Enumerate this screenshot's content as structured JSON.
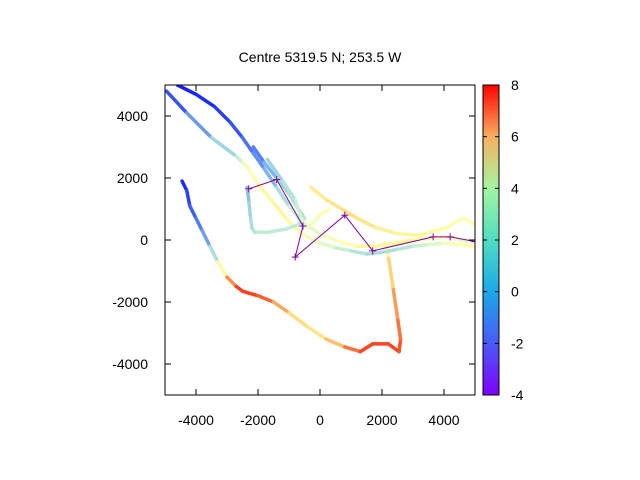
{
  "chart_data": {
    "type": "scatter",
    "title": "Centre 5319.5 N; 253.5  W",
    "xlabel": "",
    "ylabel": "",
    "xlim": [
      -5000,
      5000
    ],
    "ylim": [
      -5000,
      5000
    ],
    "xticks": [
      -4000,
      -2000,
      0,
      2000,
      4000
    ],
    "yticks": [
      -4000,
      -2000,
      0,
      2000,
      4000
    ],
    "xtick_labels": [
      "-4000",
      "-2000",
      "0",
      "2000",
      "4000"
    ],
    "ytick_labels": [
      "-4000",
      "-2000",
      "0",
      "2000",
      "4000"
    ],
    "grid": false,
    "colorbar": {
      "range": [
        -4,
        8
      ],
      "ticks": [
        -4,
        -2,
        0,
        2,
        4,
        6,
        8
      ],
      "tick_labels": [
        "-4",
        "-2",
        "0",
        "2",
        "4",
        "6",
        "8"
      ],
      "palette": "rainbow"
    },
    "tracks": [
      {
        "points": [
          [
            -4450,
            1900,
            -3.5
          ],
          [
            -4300,
            1600,
            -3.2
          ],
          [
            -4200,
            1100,
            -2.8
          ],
          [
            -4000,
            700,
            -2.3
          ],
          [
            -3800,
            300,
            -1.8
          ],
          [
            -3550,
            -200,
            -1.0
          ],
          [
            -3300,
            -700,
            1.0
          ],
          [
            -3000,
            -1200,
            4.5
          ],
          [
            -2700,
            -1500,
            7.0
          ],
          [
            -2500,
            -1650,
            7.2
          ],
          [
            -2000,
            -1800,
            7.0
          ],
          [
            -1500,
            -2000,
            6.0
          ],
          [
            -1000,
            -2350,
            4.5
          ],
          [
            -400,
            -2800,
            3.5
          ],
          [
            200,
            -3200,
            4.0
          ],
          [
            800,
            -3450,
            5.5
          ],
          [
            1300,
            -3600,
            7.0
          ],
          [
            1700,
            -3350,
            7.0
          ],
          [
            2200,
            -3350,
            7.0
          ],
          [
            2550,
            -3600,
            7.0
          ],
          [
            2600,
            -3200,
            6.5
          ],
          [
            2500,
            -2500,
            6.0
          ],
          [
            2350,
            -1500,
            5.0
          ],
          [
            2200,
            -500,
            3.5
          ],
          [
            2100,
            -100,
            2.0
          ]
        ]
      },
      {
        "points": [
          [
            -4950,
            4800,
            -3.5
          ],
          [
            -4300,
            4100,
            -2.0
          ],
          [
            -3500,
            3300,
            -1.0
          ],
          [
            -2700,
            2700,
            0.5
          ],
          [
            -2500,
            2500,
            1.0
          ],
          [
            -2300,
            2300,
            2.0
          ],
          [
            -2000,
            1800,
            2.5
          ],
          [
            -1500,
            1200,
            3.0
          ],
          [
            -1100,
            700,
            3.0
          ],
          [
            -700,
            300,
            2.5
          ],
          [
            -400,
            100,
            2.0
          ],
          [
            0,
            -100,
            1.5
          ],
          [
            500,
            -250,
            1.0
          ],
          [
            1000,
            -350,
            0.5
          ],
          [
            1500,
            -450,
            0.0
          ],
          [
            2000,
            -400,
            0.0
          ],
          [
            2500,
            -300,
            0.0
          ],
          [
            3000,
            -200,
            0.5
          ],
          [
            3500,
            -150,
            1.0
          ],
          [
            4000,
            -100,
            1.5
          ],
          [
            4500,
            -150,
            2.0
          ],
          [
            4950,
            -200,
            2.5
          ]
        ]
      },
      {
        "points": [
          [
            -4600,
            5000,
            -3.5
          ],
          [
            -4000,
            4700,
            -3.5
          ],
          [
            -3400,
            4300,
            -3.2
          ],
          [
            -2900,
            3800,
            -3.0
          ],
          [
            -2500,
            3300,
            -2.5
          ],
          [
            -2150,
            2800,
            -2.0
          ],
          [
            -1800,
            2300,
            -1.5
          ],
          [
            -1400,
            1700,
            -0.5
          ],
          [
            -1000,
            1100,
            0.5
          ],
          [
            -600,
            600,
            1.0
          ],
          [
            0,
            200,
            1.5
          ],
          [
            600,
            -50,
            2.0
          ],
          [
            1200,
            -200,
            2.5
          ],
          [
            1800,
            -200,
            3.0
          ],
          [
            2400,
            -100,
            3.0
          ],
          [
            3000,
            0,
            3.0
          ],
          [
            3500,
            50,
            2.5
          ],
          [
            4000,
            100,
            2.0
          ],
          [
            4500,
            0,
            1.5
          ],
          [
            4950,
            -50,
            1.0
          ]
        ]
      },
      {
        "points": [
          [
            -2150,
            3000,
            -2.5
          ],
          [
            -1800,
            2500,
            -1.5
          ],
          [
            -1400,
            2000,
            -0.5
          ],
          [
            -1000,
            1500,
            0.0
          ],
          [
            -700,
            1000,
            0.0
          ],
          [
            -500,
            700,
            0.0
          ],
          [
            -700,
            500,
            0.5
          ],
          [
            -1100,
            350,
            0.5
          ],
          [
            -1700,
            250,
            0.5
          ],
          [
            -2100,
            250,
            0.5
          ],
          [
            -2200,
            400,
            0.0
          ],
          [
            -2250,
            800,
            0.0
          ],
          [
            -2300,
            1300,
            -0.5
          ],
          [
            -2350,
            1700,
            -1.0
          ]
        ]
      },
      {
        "points": [
          [
            -300,
            1700,
            3.5
          ],
          [
            200,
            1300,
            3.5
          ],
          [
            700,
            1000,
            4.0
          ],
          [
            1200,
            700,
            4.0
          ],
          [
            1800,
            400,
            3.5
          ],
          [
            2500,
            200,
            3.0
          ],
          [
            3200,
            150,
            3.0
          ],
          [
            3700,
            300,
            2.5
          ],
          [
            4100,
            400,
            2.5
          ],
          [
            4400,
            600,
            2.0
          ],
          [
            4650,
            700,
            2.0
          ],
          [
            4950,
            500,
            2.0
          ]
        ]
      },
      {
        "points": [
          [
            -1700,
            2600,
            -0.5
          ],
          [
            -1200,
            1900,
            0.0
          ],
          [
            -800,
            1300,
            0.5
          ],
          [
            -600,
            700,
            1.0
          ],
          [
            -400,
            400,
            1.5
          ],
          [
            0,
            800,
            2.0
          ],
          [
            300,
            1000,
            2.0
          ]
        ]
      }
    ],
    "waypoints": [
      [
        -2300,
        1650
      ],
      [
        -1400,
        1950
      ],
      [
        -550,
        450
      ],
      [
        -800,
        -550
      ],
      [
        800,
        800
      ],
      [
        1700,
        -350
      ],
      [
        3650,
        100
      ],
      [
        4200,
        100
      ],
      [
        5000,
        -50
      ]
    ]
  }
}
